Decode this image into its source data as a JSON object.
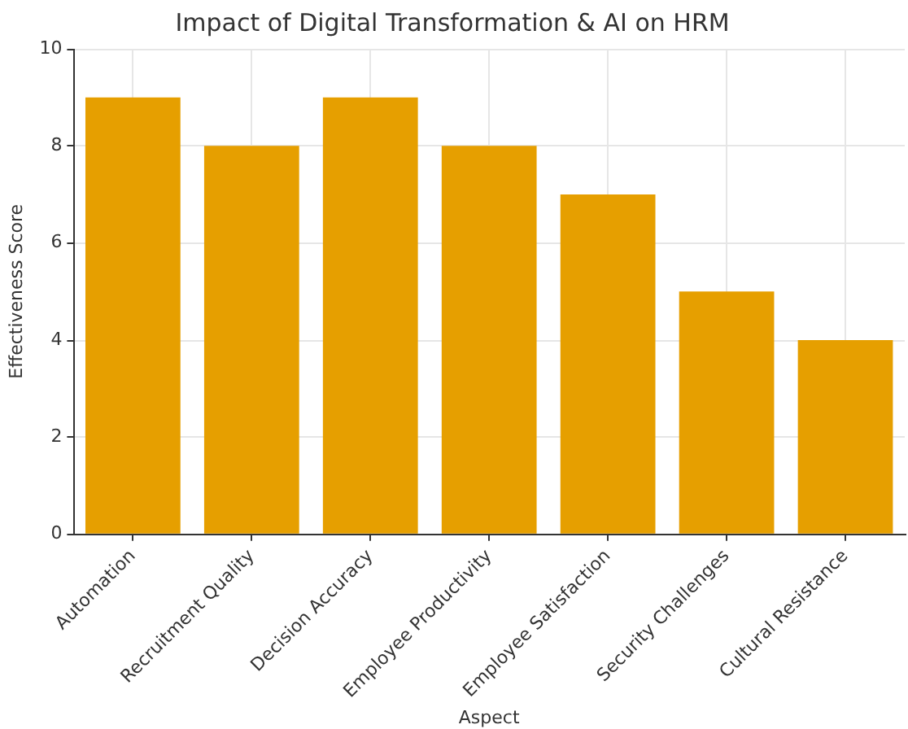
{
  "chart_data": {
    "type": "bar",
    "title": "Impact of Digital Transformation & AI on HRM",
    "xlabel": "Aspect",
    "ylabel": "Effectiveness Score",
    "categories": [
      "Automation",
      "Recruitment Quality",
      "Decision Accuracy",
      "Employee Productivity",
      "Employee Satisfaction",
      "Security Challenges",
      "Cultural Resistance"
    ],
    "values": [
      9,
      8,
      9,
      8,
      7,
      5,
      4
    ],
    "color": "#e69f00",
    "ylim": [
      0,
      10
    ],
    "yticks": [
      0,
      2,
      4,
      6,
      8,
      10
    ],
    "grid": true
  }
}
